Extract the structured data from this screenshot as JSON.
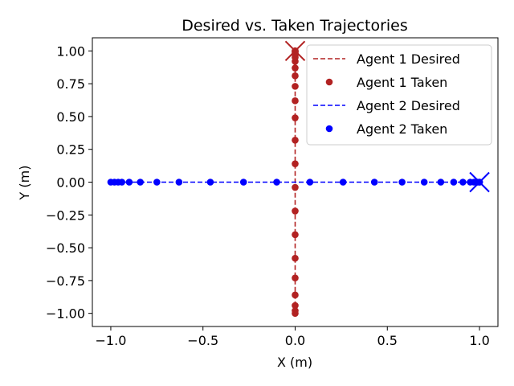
{
  "chart_data": {
    "type": "scatter",
    "title": "Desired vs. Taken Trajectories",
    "xlabel": "X (m)",
    "ylabel": "Y (m)",
    "xlim": [
      -1.1,
      1.1
    ],
    "ylim": [
      -1.1,
      1.1
    ],
    "x_ticks": [
      -1.0,
      -0.5,
      0.0,
      0.5,
      1.0
    ],
    "x_tick_labels": [
      "−1.0",
      "−0.5",
      "0.0",
      "0.5",
      "1.0"
    ],
    "y_ticks": [
      1.0,
      0.75,
      0.5,
      0.25,
      0.0,
      -0.25,
      -0.5,
      -0.75,
      -1.0
    ],
    "y_tick_labels": [
      "1.00",
      "0.75",
      "0.50",
      "0.25",
      "0.00",
      "−0.25",
      "−0.50",
      "−0.75",
      "−1.00"
    ],
    "grid": false,
    "legend_position": "top-right",
    "legend": [
      {
        "label": "Agent 1 Desired",
        "kind": "line",
        "color": "#b22222"
      },
      {
        "label": "Agent 1 Taken",
        "kind": "marker",
        "color": "#b22222"
      },
      {
        "label": "Agent 2 Desired",
        "kind": "line",
        "color": "#0000ff"
      },
      {
        "label": "Agent 2 Taken",
        "kind": "marker",
        "color": "#0000ff"
      }
    ],
    "series": [
      {
        "name": "Agent 1 Desired",
        "kind": "dashed-line",
        "color": "#b22222",
        "x": [
          0.0,
          0.0
        ],
        "y": [
          -1.0,
          1.0
        ]
      },
      {
        "name": "Agent 1 Taken",
        "kind": "markers",
        "color": "#b22222",
        "x": [
          0,
          0,
          0,
          0,
          0,
          0,
          0,
          0,
          0,
          0,
          0,
          0,
          0,
          0,
          0,
          0,
          0,
          0,
          0,
          0,
          0,
          0,
          0,
          0
        ],
        "y": [
          -1.0,
          -0.98,
          -0.94,
          -0.86,
          -0.73,
          -0.58,
          -0.4,
          -0.22,
          -0.04,
          0.14,
          0.32,
          0.49,
          0.62,
          0.73,
          0.81,
          0.87,
          0.92,
          0.95,
          0.97,
          0.98,
          0.99,
          1.0,
          1.0,
          1.0
        ]
      },
      {
        "name": "Agent 2 Desired",
        "kind": "dashed-line",
        "color": "#0000ff",
        "x": [
          -1.0,
          1.0
        ],
        "y": [
          0.0,
          0.0
        ]
      },
      {
        "name": "Agent 2 Taken",
        "kind": "markers",
        "color": "#0000ff",
        "x": [
          -1.0,
          -0.98,
          -0.96,
          -0.94,
          -0.9,
          -0.84,
          -0.75,
          -0.63,
          -0.46,
          -0.28,
          -0.1,
          0.08,
          0.26,
          0.43,
          0.58,
          0.7,
          0.79,
          0.86,
          0.91,
          0.95,
          0.97,
          0.99,
          1.0,
          1.0
        ],
        "y": [
          0,
          0,
          0,
          0,
          0,
          0,
          0,
          0,
          0,
          0,
          0,
          0,
          0,
          0,
          0,
          0,
          0,
          0,
          0,
          0,
          0,
          0,
          0,
          0
        ]
      }
    ],
    "goal_markers": [
      {
        "agent": "Agent 1",
        "x": 0.0,
        "y": 1.0,
        "color": "#b22222",
        "shape": "x"
      },
      {
        "agent": "Agent 2",
        "x": 1.0,
        "y": 0.0,
        "color": "#0000ff",
        "shape": "x"
      }
    ]
  }
}
